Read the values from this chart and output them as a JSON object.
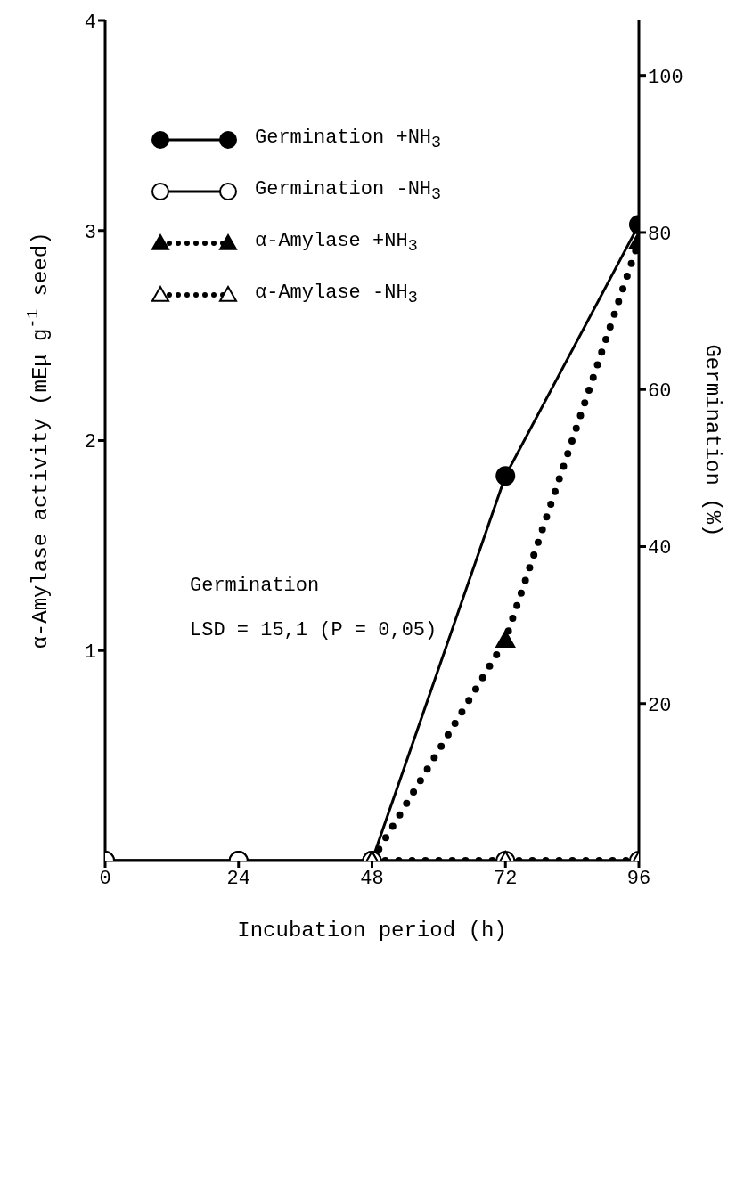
{
  "chart_data": {
    "type": "line",
    "xlabel": "Incubation period (h)",
    "ylabel": "α-Amylase activity (mEμ g$^{-1}$ seed)",
    "y2label": "Germination (%)",
    "x": [
      0,
      24,
      48,
      72,
      96
    ],
    "xlim": [
      0,
      96
    ],
    "xticks": [
      0,
      24,
      48,
      72,
      96
    ],
    "ylim": [
      0,
      4
    ],
    "yticks": [
      1,
      2,
      3,
      4
    ],
    "y2lim": [
      0,
      107
    ],
    "y2ticks": [
      20,
      40,
      60,
      80,
      100
    ],
    "grid": false,
    "legend": "top left",
    "series": [
      {
        "name": "Germination +NH$_{3}$",
        "color": "#000000",
        "axis": "y2",
        "marker": "circle",
        "line_style": "solid",
        "values": [
          0,
          0,
          0,
          49,
          81
        ]
      },
      {
        "name": "Germination -NH$_{3}$",
        "color": "#ffffff",
        "axis": "y2",
        "marker": "circle",
        "line_style": "solid",
        "values": [
          0,
          0,
          0,
          0,
          0
        ]
      },
      {
        "name": "α-Amylase +NH$_{3}$",
        "color": "#000000",
        "marker": "triangle",
        "line_style": "dotted",
        "values": [
          null,
          null,
          0,
          1.05,
          2.95
        ]
      },
      {
        "name": "α-Amylase -NH$_{3}$",
        "color": "#ffffff",
        "marker": "triangle",
        "line_style": "dotted",
        "values": [
          null,
          null,
          0,
          0,
          0
        ]
      }
    ],
    "annotations": [
      "Germination",
      "LSD = 15,1 (P = 0,05)"
    ]
  }
}
